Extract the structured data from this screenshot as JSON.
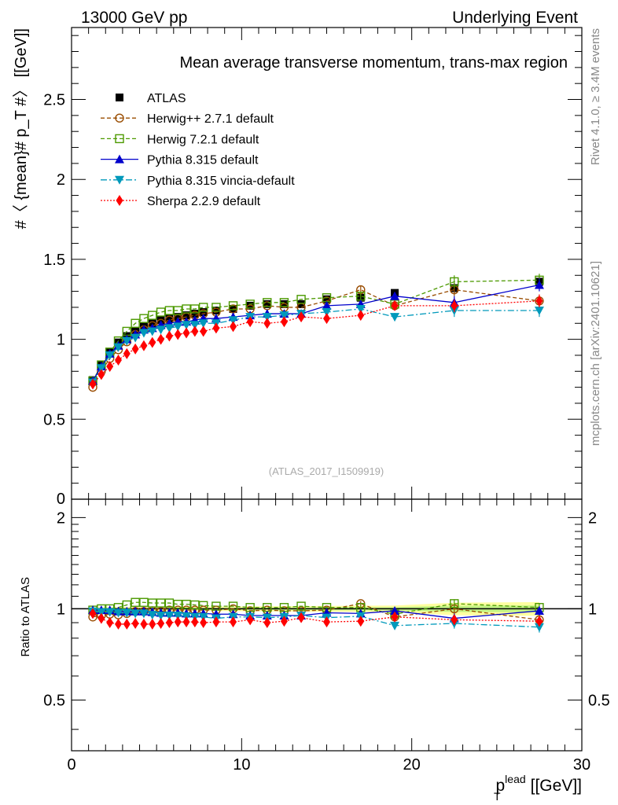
{
  "header": {
    "energy_label": "13000 GeV pp",
    "process_label": "Underlying Event",
    "side_text_top": "Rivet 4.1.0, ≥ 3.4M events",
    "side_text_bottom": "mcplots.cern.ch [arXiv:2401.10621]"
  },
  "main_plot": {
    "title": "Mean average transverse momentum, trans-max region",
    "ylabel": "#〈 {mean}# p_T #〉 [[GeV]]",
    "analysis_id": "(ATLAS_2017_I1509919)"
  },
  "ratio_plot": {
    "ylabel": "Ratio to ATLAS"
  },
  "xaxis": {
    "label_main": "p",
    "label_sup": "lead",
    "label_sub": "T",
    "label_unit": "[[GeV]]"
  },
  "legend": [
    {
      "name": "ATLAS",
      "color": "#000000",
      "marker": "square-filled",
      "dash": ""
    },
    {
      "name": "Herwig++ 2.7.1 default",
      "color": "#994c00",
      "marker": "circle-open",
      "dash": "5,3"
    },
    {
      "name": "Herwig 7.2.1 default",
      "color": "#4c9900",
      "marker": "square-open",
      "dash": "5,3"
    },
    {
      "name": "Pythia 8.315 default",
      "color": "#0000cc",
      "marker": "triangle-up",
      "dash": ""
    },
    {
      "name": "Pythia 8.315 vincia-default",
      "color": "#0099bb",
      "marker": "triangle-down",
      "dash": "8,3,2,3"
    },
    {
      "name": "Sherpa 2.2.9 default",
      "color": "#ff0000",
      "marker": "diamond",
      "dash": "2,2"
    }
  ],
  "chart_data": [
    {
      "type": "scatter",
      "title": "Mean average transverse momentum, trans-max region",
      "xlabel": "p_T^lead [GeV]",
      "ylabel": "<mean p_T> [GeV]",
      "xlim": [
        0,
        30
      ],
      "ylim": [
        0,
        2.95
      ],
      "yticks": [
        0.5,
        1,
        1.5,
        2,
        2.5
      ],
      "yticklabels": [
        "0.5",
        "1",
        "1.5",
        "2",
        "2.5"
      ],
      "ylow_label": "0",
      "x": [
        1.25,
        1.75,
        2.25,
        2.75,
        3.25,
        3.75,
        4.25,
        4.75,
        5.25,
        5.75,
        6.25,
        6.75,
        7.25,
        7.75,
        8.5,
        9.5,
        10.5,
        11.5,
        12.5,
        13.5,
        15,
        17,
        19,
        22.5,
        27.5
      ],
      "series": [
        {
          "name": "ATLAS",
          "values": [
            0.745,
            0.84,
            0.92,
            0.98,
            1.02,
            1.05,
            1.08,
            1.1,
            1.12,
            1.13,
            1.14,
            1.15,
            1.16,
            1.17,
            1.18,
            1.19,
            1.21,
            1.22,
            1.22,
            1.22,
            1.25,
            1.26,
            1.29,
            1.32,
            1.36
          ]
        },
        {
          "name": "Herwig++ 2.7.1 default",
          "values": [
            0.7,
            0.8,
            0.88,
            0.935,
            0.985,
            1.03,
            1.06,
            1.085,
            1.1,
            1.12,
            1.13,
            1.14,
            1.15,
            1.16,
            1.17,
            1.19,
            1.19,
            1.21,
            1.2,
            1.2,
            1.24,
            1.31,
            1.21,
            1.31,
            1.24
          ]
        },
        {
          "name": "Herwig 7.2.1 default",
          "values": [
            0.74,
            0.84,
            0.92,
            0.99,
            1.05,
            1.1,
            1.13,
            1.15,
            1.17,
            1.18,
            1.18,
            1.19,
            1.19,
            1.2,
            1.2,
            1.21,
            1.22,
            1.23,
            1.23,
            1.25,
            1.26,
            1.27,
            1.22,
            1.36,
            1.37
          ]
        },
        {
          "name": "Pythia 8.315 default",
          "values": [
            0.74,
            0.83,
            0.91,
            0.96,
            1.0,
            1.03,
            1.06,
            1.07,
            1.09,
            1.1,
            1.11,
            1.11,
            1.12,
            1.13,
            1.13,
            1.14,
            1.15,
            1.16,
            1.16,
            1.16,
            1.21,
            1.22,
            1.27,
            1.23,
            1.34
          ]
        },
        {
          "name": "Pythia 8.315 vincia-default",
          "values": [
            0.73,
            0.82,
            0.9,
            0.95,
            0.99,
            1.01,
            1.04,
            1.05,
            1.06,
            1.07,
            1.08,
            1.09,
            1.09,
            1.1,
            1.1,
            1.12,
            1.14,
            1.14,
            1.15,
            1.16,
            1.17,
            1.19,
            1.14,
            1.18,
            1.18
          ]
        },
        {
          "name": "Sherpa 2.2.9 default",
          "values": [
            0.72,
            0.78,
            0.83,
            0.87,
            0.91,
            0.94,
            0.96,
            0.98,
            1.0,
            1.02,
            1.03,
            1.04,
            1.05,
            1.05,
            1.07,
            1.08,
            1.11,
            1.1,
            1.11,
            1.14,
            1.13,
            1.15,
            1.21,
            1.21,
            1.24
          ]
        }
      ]
    },
    {
      "type": "scatter",
      "title": "",
      "xlabel": "p_T^lead [GeV]",
      "ylabel": "Ratio to ATLAS",
      "xlim": [
        0,
        30
      ],
      "ylim": [
        0.34,
        2.3
      ],
      "xticks": [
        0,
        10,
        20,
        30
      ],
      "xticklabels": [
        "0",
        "10",
        "20",
        "30"
      ],
      "yticks": [
        0.5,
        1,
        2
      ],
      "yticklabels": [
        "0.5",
        "1",
        "2"
      ],
      "x": [
        1.25,
        1.75,
        2.25,
        2.75,
        3.25,
        3.75,
        4.25,
        4.75,
        5.25,
        5.75,
        6.25,
        6.75,
        7.25,
        7.75,
        8.5,
        9.5,
        10.5,
        11.5,
        12.5,
        13.5,
        15,
        17,
        19,
        22.5,
        27.5
      ],
      "series": [
        {
          "name": "Herwig++ 2.7.1 default",
          "values": [
            0.94,
            0.95,
            0.96,
            0.955,
            0.965,
            0.98,
            0.98,
            0.985,
            0.98,
            0.99,
            0.99,
            0.99,
            0.99,
            0.99,
            0.99,
            1.0,
            0.985,
            0.99,
            0.985,
            0.985,
            0.99,
            1.04,
            0.94,
            1.0,
            0.92
          ]
        },
        {
          "name": "Herwig 7.2.1 default",
          "values": [
            0.99,
            1.0,
            1.0,
            1.01,
            1.03,
            1.05,
            1.05,
            1.045,
            1.045,
            1.045,
            1.035,
            1.035,
            1.03,
            1.025,
            1.02,
            1.02,
            1.01,
            1.01,
            1.01,
            1.02,
            1.01,
            1.01,
            0.96,
            1.04,
            1.01
          ]
        },
        {
          "name": "Pythia 8.315 default",
          "values": [
            0.99,
            0.99,
            0.99,
            0.98,
            0.98,
            0.98,
            0.98,
            0.975,
            0.97,
            0.97,
            0.97,
            0.965,
            0.965,
            0.965,
            0.96,
            0.96,
            0.95,
            0.95,
            0.95,
            0.95,
            0.97,
            0.965,
            0.985,
            0.93,
            0.985
          ]
        },
        {
          "name": "Pythia 8.315 vincia-default",
          "values": [
            0.98,
            0.975,
            0.975,
            0.97,
            0.97,
            0.965,
            0.965,
            0.955,
            0.95,
            0.95,
            0.95,
            0.945,
            0.94,
            0.94,
            0.93,
            0.94,
            0.94,
            0.935,
            0.94,
            0.95,
            0.935,
            0.945,
            0.88,
            0.895,
            0.87
          ]
        },
        {
          "name": "Sherpa 2.2.9 default",
          "values": [
            0.965,
            0.93,
            0.9,
            0.89,
            0.89,
            0.895,
            0.89,
            0.89,
            0.895,
            0.9,
            0.905,
            0.905,
            0.905,
            0.9,
            0.905,
            0.905,
            0.92,
            0.9,
            0.91,
            0.935,
            0.905,
            0.91,
            0.94,
            0.92,
            0.91
          ]
        }
      ]
    }
  ]
}
